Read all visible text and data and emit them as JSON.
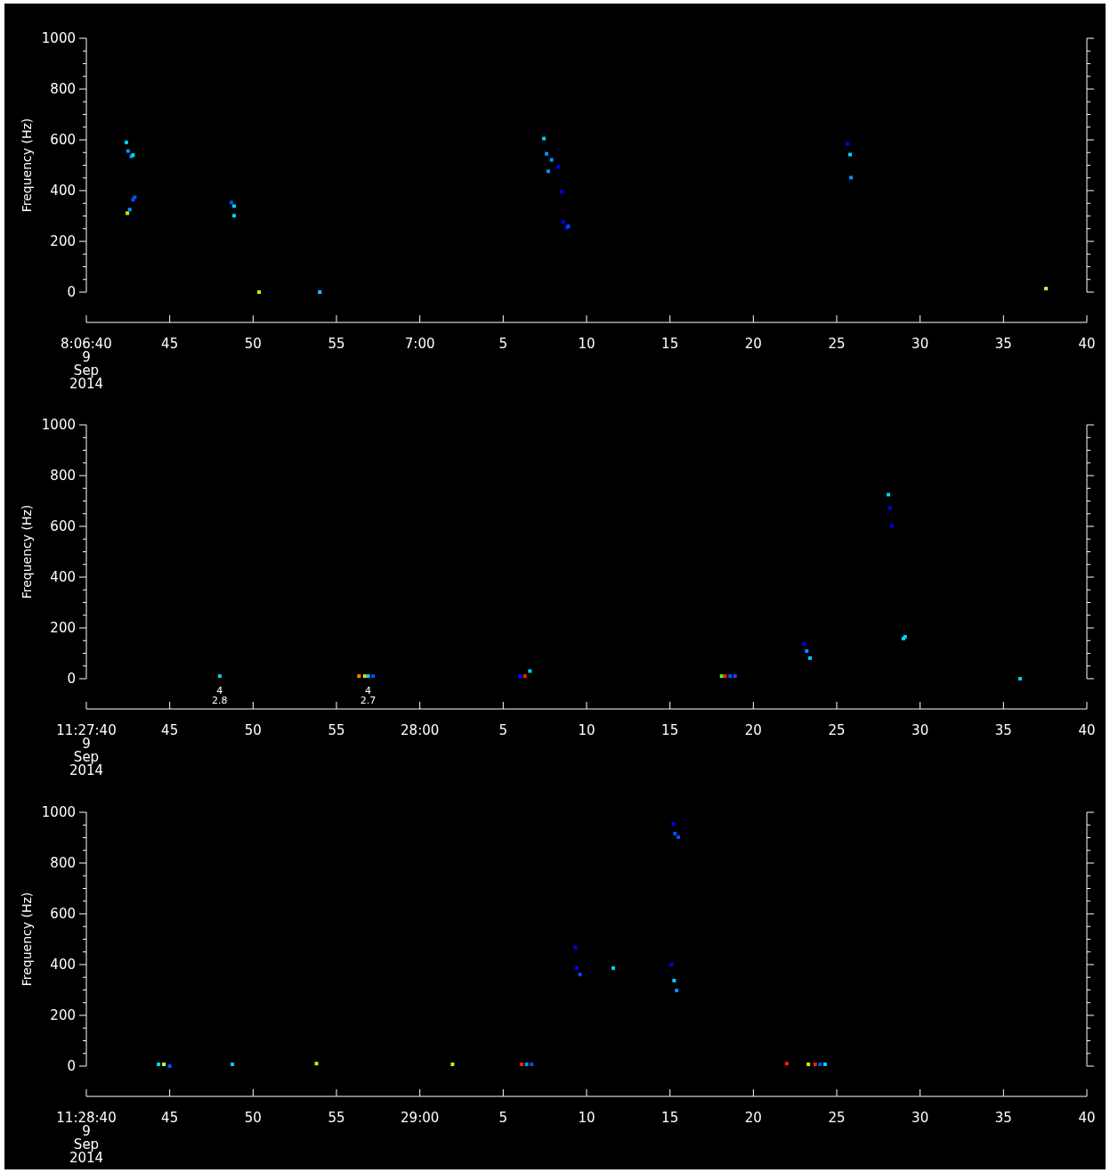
{
  "chart_data": [
    {
      "type": "scatter",
      "ylabel": "Frequency (Hz)",
      "marker": "square",
      "xlim": [
        "2014-09-09T08:06:40",
        "2014-09-09T08:07:40"
      ],
      "ylim": [
        0,
        1000
      ],
      "xticks": [
        {
          "value": "2014-09-09T08:06:40",
          "label": "8:06:40\n9\nSep\n2014"
        },
        {
          "value": "2014-09-09T08:06:45",
          "label": "45"
        },
        {
          "value": "2014-09-09T08:06:50",
          "label": "50"
        },
        {
          "value": "2014-09-09T08:06:55",
          "label": "55"
        },
        {
          "value": "2014-09-09T08:07:00",
          "label": "7:00"
        },
        {
          "value": "2014-09-09T08:07:05",
          "label": "5"
        },
        {
          "value": "2014-09-09T08:07:10",
          "label": "10"
        },
        {
          "value": "2014-09-09T08:07:15",
          "label": "15"
        },
        {
          "value": "2014-09-09T08:07:20",
          "label": "20"
        },
        {
          "value": "2014-09-09T08:07:25",
          "label": "25"
        },
        {
          "value": "2014-09-09T08:07:30",
          "label": "30"
        },
        {
          "value": "2014-09-09T08:07:35",
          "label": "35"
        },
        {
          "value": "2014-09-09T08:07:40",
          "label": "40"
        }
      ],
      "yticks": [
        0,
        {
          "value": 50,
          "label": null
        },
        {
          "value": 100,
          "label": null
        },
        {
          "value": 150,
          "label": null
        },
        200,
        {
          "value": 250,
          "label": null
        },
        {
          "value": 300,
          "label": null
        },
        {
          "value": 350,
          "label": null
        },
        400,
        {
          "value": 450,
          "label": null
        },
        {
          "value": 500,
          "label": null
        },
        {
          "value": 550,
          "label": null
        },
        600,
        {
          "value": 650,
          "label": null
        },
        {
          "value": 700,
          "label": null
        },
        {
          "value": 750,
          "label": null
        },
        800,
        {
          "value": 850,
          "label": null
        },
        {
          "value": 900,
          "label": null
        },
        {
          "value": 950,
          "label": null
        },
        1000
      ],
      "series": [
        {
          "x": [
            "2014-09-09T08:06:42.400",
            "2014-09-09T08:06:42.500",
            "2014-09-09T08:06:42.700",
            "2014-09-09T08:06:42.800",
            "2014-09-09T08:06:42.460",
            "2014-09-09T08:06:42.600",
            "2014-09-09T08:06:42.800",
            "2014-09-09T08:06:42.900",
            "2014-09-09T08:06:48.700",
            "2014-09-09T08:06:48.860",
            "2014-09-09T08:06:48.860",
            "2014-09-09T08:06:50.360",
            "2014-09-09T08:06:54.000",
            "2014-09-09T08:07:07.440",
            "2014-09-09T08:07:07.600",
            "2014-09-09T08:07:07.700",
            "2014-09-09T08:07:07.900",
            "2014-09-09T08:07:08.300",
            "2014-09-09T08:07:08.500",
            "2014-09-09T08:07:08.600",
            "2014-09-09T08:07:08.800",
            "2014-09-09T08:07:08.900",
            "2014-09-09T08:07:25.650",
            "2014-09-09T08:07:25.800",
            "2014-09-09T08:07:25.860",
            "2014-09-09T08:07:37.550"
          ],
          "values": [
            590,
            556,
            535,
            540,
            311,
            325,
            364,
            374,
            353,
            339,
            301,
            0,
            0,
            605,
            545,
            476,
            521,
            493,
            395,
            276,
            252,
            259,
            584,
            542,
            451,
            14
          ],
          "colors": [
            "#00d0ff",
            "#0096ff",
            "#0096ff",
            "#00d0ff",
            "#e0e000",
            "#0096ff",
            "#0050ff",
            "#0050ff",
            "#0050ff",
            "#00d0ff",
            "#00d0ff",
            "#e0e000",
            "#00d0ff",
            "#00d0ff",
            "#0096ff",
            "#0096ff",
            "#0096ff",
            "#0000ff",
            "#0000ff",
            "#0000ff",
            "#0000ff",
            "#0050ff",
            "#0000ff",
            "#00d0ff",
            "#0096ff",
            "#c0ff40"
          ]
        }
      ]
    },
    {
      "type": "scatter",
      "ylabel": "Frequency (Hz)",
      "marker": "square",
      "xlim": [
        "2014-09-09T11:27:40",
        "2014-09-09T11:28:40"
      ],
      "ylim": [
        0,
        1000
      ],
      "xticks": [
        {
          "value": "2014-09-09T11:27:40",
          "label": "11:27:40\n9\nSep\n2014"
        },
        {
          "value": "2014-09-09T11:27:45",
          "label": "45"
        },
        {
          "value": "2014-09-09T11:27:50",
          "label": "50"
        },
        {
          "value": "2014-09-09T11:27:55",
          "label": "55"
        },
        {
          "value": "2014-09-09T11:28:00",
          "label": "28:00"
        },
        {
          "value": "2014-09-09T11:28:05",
          "label": "5"
        },
        {
          "value": "2014-09-09T11:28:10",
          "label": "10"
        },
        {
          "value": "2014-09-09T11:28:15",
          "label": "15"
        },
        {
          "value": "2014-09-09T11:28:20",
          "label": "20"
        },
        {
          "value": "2014-09-09T11:28:25",
          "label": "25"
        },
        {
          "value": "2014-09-09T11:28:30",
          "label": "30"
        },
        {
          "value": "2014-09-09T11:28:35",
          "label": "35"
        },
        {
          "value": "2014-09-09T11:28:40",
          "label": "40"
        }
      ],
      "yticks": [
        0,
        {
          "value": 50,
          "label": null
        },
        {
          "value": 100,
          "label": null
        },
        {
          "value": 150,
          "label": null
        },
        200,
        {
          "value": 250,
          "label": null
        },
        {
          "value": 300,
          "label": null
        },
        {
          "value": 350,
          "label": null
        },
        400,
        {
          "value": 450,
          "label": null
        },
        {
          "value": 500,
          "label": null
        },
        {
          "value": 550,
          "label": null
        },
        600,
        {
          "value": 650,
          "label": null
        },
        {
          "value": 700,
          "label": null
        },
        {
          "value": 750,
          "label": null
        },
        800,
        {
          "value": 850,
          "label": null
        },
        {
          "value": 900,
          "label": null
        },
        {
          "value": 950,
          "label": null
        },
        1000
      ],
      "annotations": [
        {
          "text": "4\n2.8",
          "x": "2014-09-09T11:27:48.000",
          "y": 10
        },
        {
          "text": "4\n2.7",
          "x": "2014-09-09T11:27:56.900",
          "y": 10
        }
      ],
      "series": [
        {
          "x": [
            "2014-09-09T11:27:48.000",
            "2014-09-09T11:27:56.350",
            "2014-09-09T11:27:56.700",
            "2014-09-09T11:27:56.900",
            "2014-09-09T11:27:57.200",
            "2014-09-09T11:28:06.000",
            "2014-09-09T11:28:06.300",
            "2014-09-09T11:28:06.600",
            "2014-09-09T11:28:18.100",
            "2014-09-09T11:28:18.300",
            "2014-09-09T11:28:18.600",
            "2014-09-09T11:28:18.900",
            "2014-09-09T11:28:23.050",
            "2014-09-09T11:28:23.200",
            "2014-09-09T11:28:23.400",
            "2014-09-09T11:28:28.100",
            "2014-09-09T11:28:28.200",
            "2014-09-09T11:28:28.300",
            "2014-09-09T11:28:29.000",
            "2014-09-09T11:28:29.100",
            "2014-09-09T11:28:36.000"
          ],
          "values": [
            10,
            10,
            10,
            10,
            10,
            10,
            10,
            30,
            10,
            10,
            10,
            10,
            137,
            109,
            81,
            725,
            672,
            602,
            158,
            165,
            0
          ],
          "colors": [
            "#00d0ff",
            "#ff8000",
            "#e0e000",
            "#00d0ff",
            "#0050ff",
            "#0000ff",
            "#ff2000",
            "#00d0ff",
            "#40ff40",
            "#ff2000",
            "#0050ff",
            "#0050ff",
            "#0000ff",
            "#0096ff",
            "#00d0ff",
            "#00d0ff",
            "#0000ff",
            "#0000ff",
            "#00d0ff",
            "#00d0ff",
            "#00d0ff"
          ]
        }
      ]
    },
    {
      "type": "scatter",
      "ylabel": "Frequency (Hz)",
      "marker": "square",
      "xlim": [
        "2014-09-09T11:28:40",
        "2014-09-09T11:29:40"
      ],
      "ylim": [
        0,
        1000
      ],
      "xticks": [
        {
          "value": "2014-09-09T11:28:40",
          "label": "11:28:40\n9\nSep\n2014"
        },
        {
          "value": "2014-09-09T11:28:45",
          "label": "45"
        },
        {
          "value": "2014-09-09T11:28:50",
          "label": "50"
        },
        {
          "value": "2014-09-09T11:28:55",
          "label": "55"
        },
        {
          "value": "2014-09-09T11:29:00",
          "label": "29:00"
        },
        {
          "value": "2014-09-09T11:29:05",
          "label": "5"
        },
        {
          "value": "2014-09-09T11:29:10",
          "label": "10"
        },
        {
          "value": "2014-09-09T11:29:15",
          "label": "15"
        },
        {
          "value": "2014-09-09T11:29:20",
          "label": "20"
        },
        {
          "value": "2014-09-09T11:29:25",
          "label": "25"
        },
        {
          "value": "2014-09-09T11:29:30",
          "label": "30"
        },
        {
          "value": "2014-09-09T11:29:35",
          "label": "35"
        },
        {
          "value": "2014-09-09T11:29:40",
          "label": "40"
        }
      ],
      "yticks": [
        0,
        {
          "value": 50,
          "label": null
        },
        {
          "value": 100,
          "label": null
        },
        {
          "value": 150,
          "label": null
        },
        200,
        {
          "value": 250,
          "label": null
        },
        {
          "value": 300,
          "label": null
        },
        {
          "value": 350,
          "label": null
        },
        400,
        {
          "value": 450,
          "label": null
        },
        {
          "value": 500,
          "label": null
        },
        {
          "value": 550,
          "label": null
        },
        600,
        {
          "value": 650,
          "label": null
        },
        {
          "value": 700,
          "label": null
        },
        {
          "value": 750,
          "label": null
        },
        800,
        {
          "value": 850,
          "label": null
        },
        {
          "value": 900,
          "label": null
        },
        {
          "value": 950,
          "label": null
        },
        1000
      ],
      "series": [
        {
          "x": [
            "2014-09-09T11:28:44.330",
            "2014-09-09T11:28:44.650",
            "2014-09-09T11:28:45.000",
            "2014-09-09T11:28:48.760",
            "2014-09-09T11:28:53.800",
            "2014-09-09T11:29:01.960",
            "2014-09-09T11:29:06.100",
            "2014-09-09T11:29:06.400",
            "2014-09-09T11:29:06.700",
            "2014-09-09T11:29:09.330",
            "2014-09-09T11:29:09.400",
            "2014-09-09T11:29:09.600",
            "2014-09-09T11:29:11.600",
            "2014-09-09T11:29:15.200",
            "2014-09-09T11:29:15.300",
            "2014-09-09T11:29:15.500",
            "2014-09-09T11:29:15.100",
            "2014-09-09T11:29:15.250",
            "2014-09-09T11:29:15.400",
            "2014-09-09T11:29:22.000",
            "2014-09-09T11:29:23.300",
            "2014-09-09T11:29:23.700",
            "2014-09-09T11:29:24.000",
            "2014-09-09T11:29:24.300"
          ],
          "values": [
            7,
            7,
            0,
            7,
            10,
            7,
            7,
            7,
            7,
            467,
            386,
            361,
            386,
            954,
            916,
            902,
            400,
            337,
            298,
            10,
            7,
            7,
            7,
            7
          ],
          "colors": [
            "#00d0ff",
            "#c0ff40",
            "#0050ff",
            "#00d0ff",
            "#e0e000",
            "#e0e000",
            "#ff2000",
            "#0096ff",
            "#0050ff",
            "#0000ff",
            "#0000ff",
            "#0050ff",
            "#00d0ff",
            "#0000ff",
            "#0050ff",
            "#0050ff",
            "#0000ff",
            "#00d0ff",
            "#0096ff",
            "#ff2000",
            "#e0e000",
            "#ff2000",
            "#0050ff",
            "#00d0ff"
          ]
        }
      ]
    }
  ]
}
